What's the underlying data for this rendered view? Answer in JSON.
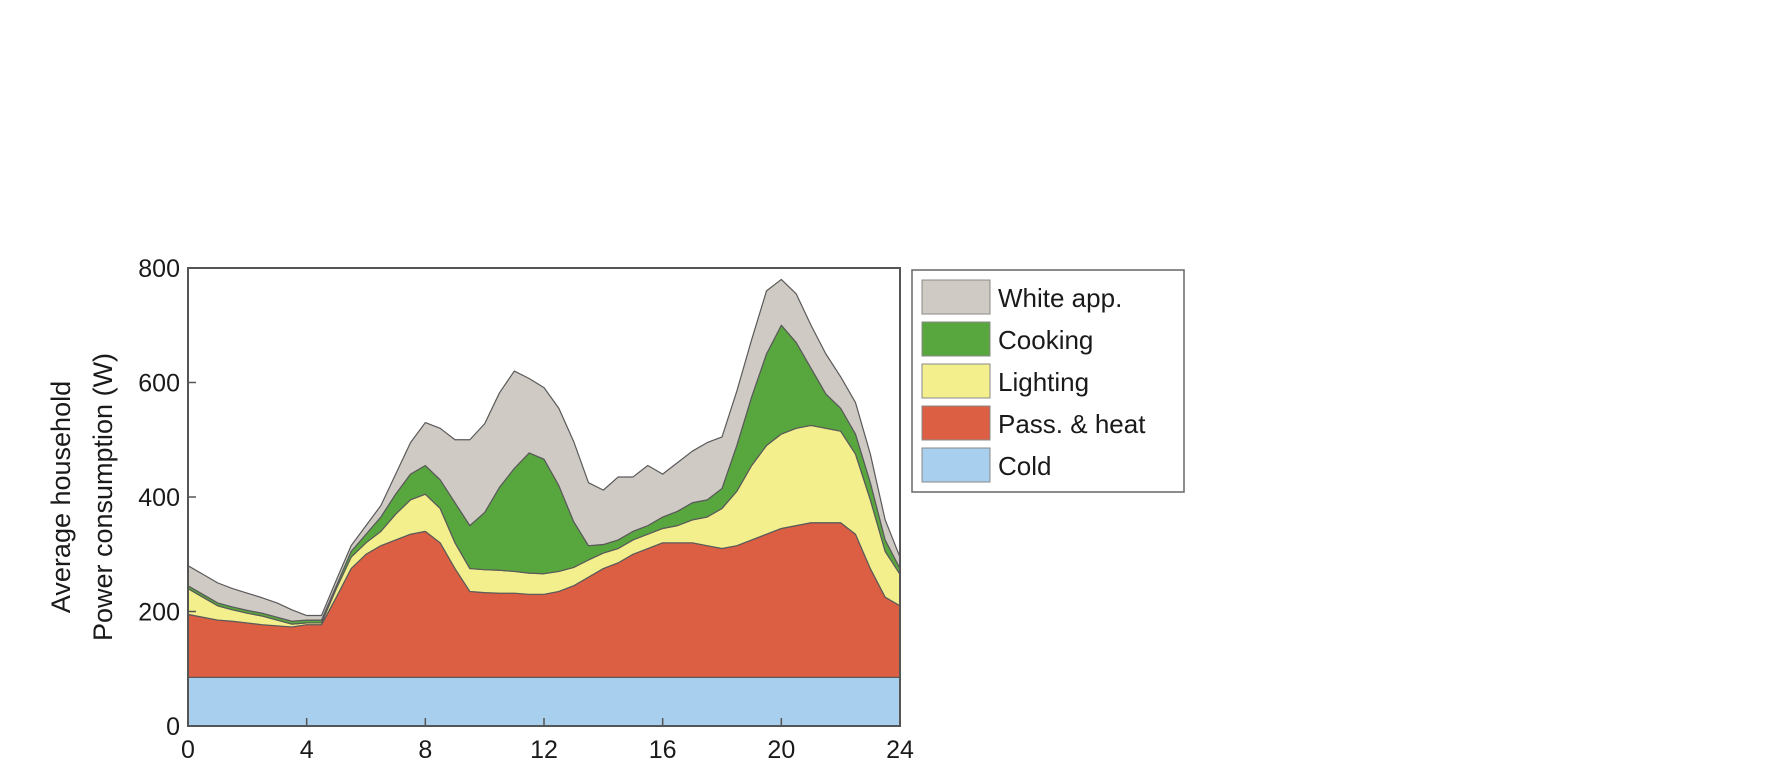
{
  "chart_data": {
    "type": "area",
    "stacked": true,
    "ylabel_line1": "Average household",
    "ylabel_line2": "Power consumption (W)",
    "xlabel": "",
    "xlim": [
      0,
      24
    ],
    "ylim": [
      0,
      800
    ],
    "xticks": [
      "0",
      "4",
      "8",
      "12",
      "16",
      "20",
      "24"
    ],
    "yticks": [
      "0",
      "200",
      "400",
      "600",
      "800"
    ],
    "grid": false,
    "legend_position": "outside-right-top",
    "x": [
      0,
      0.5,
      1,
      1.5,
      2,
      2.5,
      3,
      3.5,
      4,
      4.5,
      5,
      5.5,
      6,
      6.5,
      7,
      7.5,
      8,
      8.5,
      9,
      9.5,
      10,
      10.5,
      11,
      11.5,
      12,
      12.5,
      13,
      13.5,
      14,
      14.5,
      15,
      15.5,
      16,
      16.5,
      17,
      17.5,
      18,
      18.5,
      19,
      19.5,
      20,
      20.5,
      21,
      21.5,
      22,
      22.5,
      23,
      23.5,
      24
    ],
    "series": [
      {
        "name": "Cold",
        "color": "#a9cfee",
        "values": [
          85,
          85,
          85,
          85,
          85,
          85,
          85,
          85,
          85,
          85,
          85,
          85,
          85,
          85,
          85,
          85,
          85,
          85,
          85,
          85,
          85,
          85,
          85,
          85,
          85,
          85,
          85,
          85,
          85,
          85,
          85,
          85,
          85,
          85,
          85,
          85,
          85,
          85,
          85,
          85,
          85,
          85,
          85,
          85,
          85,
          85,
          85,
          85,
          85
        ]
      },
      {
        "name": "Pass. & heat",
        "color": "#dc5f44",
        "values": [
          110,
          105,
          100,
          98,
          95,
          92,
          90,
          88,
          92,
          92,
          140,
          190,
          215,
          230,
          240,
          250,
          255,
          235,
          190,
          150,
          148,
          147,
          147,
          145,
          145,
          150,
          160,
          175,
          190,
          200,
          215,
          225,
          235,
          235,
          235,
          230,
          225,
          230,
          240,
          250,
          260,
          265,
          270,
          270,
          270,
          250,
          190,
          140,
          125
        ]
      },
      {
        "name": "Lighting",
        "color": "#f3ef8c",
        "values": [
          45,
          35,
          25,
          20,
          17,
          15,
          10,
          5,
          3,
          3,
          15,
          20,
          20,
          25,
          45,
          60,
          65,
          60,
          45,
          40,
          40,
          40,
          38,
          37,
          36,
          35,
          32,
          30,
          27,
          25,
          25,
          25,
          25,
          30,
          40,
          50,
          70,
          95,
          130,
          155,
          165,
          170,
          170,
          165,
          160,
          140,
          120,
          80,
          55
        ]
      },
      {
        "name": "Cooking",
        "color": "#58a63e",
        "values": [
          5,
          5,
          5,
          5,
          5,
          5,
          5,
          5,
          5,
          5,
          5,
          10,
          15,
          25,
          35,
          45,
          50,
          50,
          70,
          75,
          100,
          145,
          180,
          210,
          200,
          150,
          80,
          25,
          15,
          15,
          15,
          15,
          20,
          25,
          30,
          30,
          35,
          80,
          120,
          160,
          190,
          150,
          100,
          60,
          40,
          35,
          30,
          20,
          10
        ]
      },
      {
        "name": "White app.",
        "color": "#cfcac4",
        "values": [
          35,
          35,
          35,
          32,
          30,
          27,
          25,
          20,
          8,
          8,
          10,
          10,
          15,
          20,
          35,
          55,
          75,
          90,
          110,
          150,
          155,
          165,
          170,
          130,
          125,
          135,
          140,
          110,
          95,
          110,
          95,
          105,
          75,
          85,
          90,
          100,
          90,
          95,
          100,
          110,
          80,
          85,
          75,
          70,
          55,
          55,
          50,
          35,
          20
        ]
      }
    ],
    "legend_order": [
      "White app.",
      "Cooking",
      "Lighting",
      "Pass. & heat",
      "Cold"
    ]
  }
}
